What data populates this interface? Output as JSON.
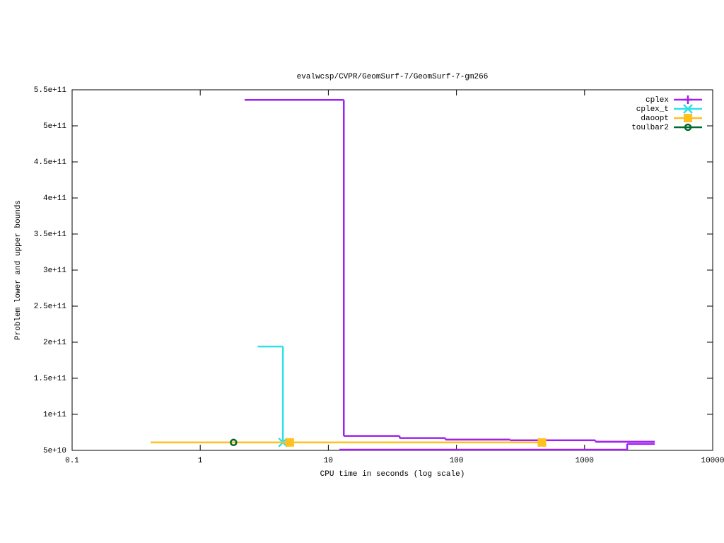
{
  "chart_data": {
    "type": "line",
    "title": "evalwcsp/CVPR/GeomSurf-7/GeomSurf-7-gm266",
    "xlabel": "CPU time in seconds (log scale)",
    "ylabel": "Problem lower and upper bounds",
    "xscale": "log",
    "style": "steps",
    "legend": "top-right",
    "xlim": [
      0.1,
      10000
    ],
    "xticks": [
      0.1,
      1,
      10,
      100,
      1000,
      10000
    ],
    "ylim": [
      50000000000,
      550000000000
    ],
    "yticks": [
      {
        "value": 50000000000,
        "label": "5e+10"
      },
      {
        "value": 100000000000,
        "label": "1e+11"
      },
      {
        "value": 150000000000,
        "label": "1.5e+11"
      },
      {
        "value": 200000000000,
        "label": "2e+11"
      },
      {
        "value": 250000000000,
        "label": "2.5e+11"
      },
      {
        "value": 300000000000,
        "label": "3e+11"
      },
      {
        "value": 350000000000,
        "label": "3.5e+11"
      },
      {
        "value": 400000000000,
        "label": "4e+11"
      },
      {
        "value": 450000000000,
        "label": "4.5e+11"
      },
      {
        "value": 500000000000,
        "label": "5e+11"
      },
      {
        "value": 550000000000,
        "label": "5.5e+11"
      }
    ],
    "series": [
      {
        "name": "cplex",
        "color": "#a020f0",
        "point": "plus",
        "x": [
          2.22,
          13.2,
          36,
          82,
          262,
          1216,
          3530,
          null,
          12.2,
          2150,
          3530
        ],
        "values": [
          536000000000,
          70000000000,
          67000000000,
          65000000000,
          64000000000,
          62000000000,
          62000000000,
          null,
          51000000000,
          59000000000,
          59000000000
        ]
      },
      {
        "name": "cplex_t",
        "color": "#30e0e8",
        "point": "cross",
        "x": [
          2.81,
          4.42
        ],
        "values": [
          194000000000,
          61000000000
        ]
      },
      {
        "name": "daoopt",
        "color": "#ffc020",
        "point": "square",
        "x": [
          0.41,
          5.0,
          465
        ],
        "values": [
          61000000000,
          61000000000,
          61000000000
        ]
      },
      {
        "name": "toulbar2",
        "color": "#006a30",
        "point": "circle",
        "x": [
          1.82
        ],
        "values": [
          61000000000
        ]
      }
    ]
  }
}
